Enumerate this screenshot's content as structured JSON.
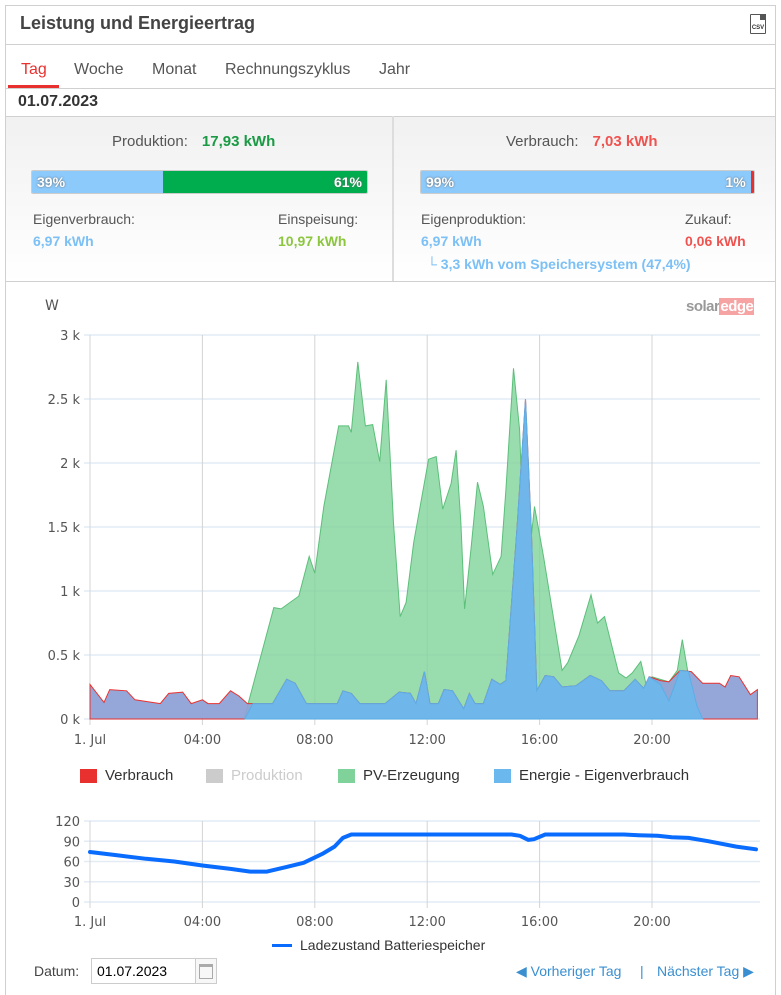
{
  "header": {
    "title": "Leistung und Energieertrag",
    "csv_label": "CSV"
  },
  "tabs": [
    {
      "label": "Tag",
      "active": true
    },
    {
      "label": "Woche"
    },
    {
      "label": "Monat"
    },
    {
      "label": "Rechnungszyklus"
    },
    {
      "label": "Jahr"
    }
  ],
  "date": "01.07.2023",
  "production": {
    "label": "Produktion:",
    "value": "17,93 kWh",
    "self_pct": "39%",
    "self_frac": 0.39,
    "feed_pct": "61%",
    "self_label": "Eigenverbrauch:",
    "self_value": "6,97 kWh",
    "feed_label": "Einspeisung:",
    "feed_value": "10,97 kWh"
  },
  "consumption": {
    "label": "Verbrauch:",
    "value": "7,03 kWh",
    "self_pct": "99%",
    "self_frac": 0.99,
    "buy_pct": "1%",
    "self_label": "Eigenproduktion:",
    "self_value": "6,97 kWh",
    "buy_label": "Zukauf:",
    "buy_value": "0,06 kWh",
    "storage_note": "└ 3,3 kWh vom Speichersystem (47,4%)"
  },
  "colors": {
    "green": "#00ad4e",
    "lightblue": "#8ccafc",
    "red": "#e8312f",
    "pv": "#7fd39a",
    "self": "#6ab8ee",
    "consumption": "#8fa2d6",
    "battery": "#0a6cff"
  },
  "logo": {
    "a": "solar",
    "b": "edge"
  },
  "chart_data": [
    {
      "type": "area",
      "ylabel": "W",
      "ylim": [
        0,
        3000
      ],
      "xlim_hours": [
        0,
        24
      ],
      "yticks": [
        "0 k",
        "0.5 k",
        "1 k",
        "1.5 k",
        "2 k",
        "2.5 k",
        "3 k"
      ],
      "xticks": [
        "1. Jul",
        "04:00",
        "08:00",
        "12:00",
        "16:00",
        "20:00"
      ],
      "legend": [
        {
          "name": "Verbrauch",
          "color": "#e8312f",
          "hidden": false
        },
        {
          "name": "Produktion",
          "color": "#cccccc",
          "hidden": true
        },
        {
          "name": "PV-Erzeugung",
          "color": "#7fd39a",
          "hidden": false
        },
        {
          "name": "Energie - Eigenverbrauch",
          "color": "#6ab8ee",
          "hidden": false
        }
      ],
      "series": {
        "verbrauch": [
          [
            0,
            270
          ],
          [
            0.5,
            130
          ],
          [
            0.7,
            230
          ],
          [
            1.3,
            220
          ],
          [
            1.6,
            150
          ],
          [
            2.5,
            120
          ],
          [
            2.8,
            200
          ],
          [
            3.3,
            210
          ],
          [
            3.6,
            120
          ],
          [
            4,
            150
          ],
          [
            4.2,
            120
          ],
          [
            4.6,
            120
          ],
          [
            5,
            220
          ],
          [
            5.3,
            180
          ],
          [
            5.6,
            120
          ],
          [
            6.5,
            120
          ],
          [
            7,
            310
          ],
          [
            7.3,
            280
          ],
          [
            7.7,
            120
          ],
          [
            8.8,
            120
          ],
          [
            9,
            220
          ],
          [
            9.3,
            200
          ],
          [
            9.6,
            120
          ],
          [
            10.5,
            120
          ],
          [
            11,
            210
          ],
          [
            11.4,
            200
          ],
          [
            11.6,
            120
          ],
          [
            11.9,
            370
          ],
          [
            12.1,
            120
          ],
          [
            12.4,
            120
          ],
          [
            12.6,
            230
          ],
          [
            12.9,
            220
          ],
          [
            13.3,
            80
          ],
          [
            13.5,
            200
          ],
          [
            13.7,
            120
          ],
          [
            14,
            120
          ],
          [
            14.3,
            310
          ],
          [
            14.6,
            270
          ],
          [
            14.8,
            300
          ],
          [
            15.2,
            1500
          ],
          [
            15.5,
            2500
          ],
          [
            15.7,
            1500
          ],
          [
            15.9,
            220
          ],
          [
            16.2,
            340
          ],
          [
            16.5,
            330
          ],
          [
            16.8,
            250
          ],
          [
            17.3,
            260
          ],
          [
            17.8,
            340
          ],
          [
            18.2,
            300
          ],
          [
            18.5,
            220
          ],
          [
            19,
            220
          ],
          [
            19.4,
            310
          ],
          [
            19.7,
            240
          ],
          [
            19.9,
            330
          ],
          [
            20.3,
            300
          ],
          [
            20.6,
            290
          ],
          [
            21,
            380
          ],
          [
            21.4,
            370
          ],
          [
            21.8,
            280
          ],
          [
            22.4,
            280
          ],
          [
            22.6,
            250
          ],
          [
            22.8,
            340
          ],
          [
            23.1,
            330
          ],
          [
            23.5,
            190
          ],
          [
            23.75,
            230
          ]
        ],
        "pv": [
          [
            5.48,
            0
          ],
          [
            6.54,
            870
          ],
          [
            6.8,
            860
          ],
          [
            7.43,
            960
          ],
          [
            7.8,
            1270
          ],
          [
            8,
            1140
          ],
          [
            8.32,
            1660
          ],
          [
            8.85,
            2290
          ],
          [
            9.2,
            2290
          ],
          [
            9.3,
            2240
          ],
          [
            9.53,
            2790
          ],
          [
            9.8,
            2290
          ],
          [
            10.06,
            2300
          ],
          [
            10.31,
            2010
          ],
          [
            10.54,
            2650
          ],
          [
            10.8,
            1530
          ],
          [
            11.04,
            800
          ],
          [
            11.25,
            910
          ],
          [
            11.52,
            1380
          ],
          [
            12.05,
            2030
          ],
          [
            12.32,
            2050
          ],
          [
            12.55,
            1640
          ],
          [
            12.85,
            1840
          ],
          [
            13.03,
            2100
          ],
          [
            13.2,
            1530
          ],
          [
            13.33,
            860
          ],
          [
            13.56,
            1330
          ],
          [
            13.79,
            1850
          ],
          [
            14,
            1660
          ],
          [
            14.33,
            1130
          ],
          [
            14.63,
            1270
          ],
          [
            14.8,
            1790
          ],
          [
            15.07,
            2740
          ],
          [
            15.29,
            2260
          ],
          [
            15.5,
            1000
          ],
          [
            15.82,
            1660
          ],
          [
            16.14,
            1270
          ],
          [
            16.5,
            780
          ],
          [
            16.8,
            380
          ],
          [
            17,
            440
          ],
          [
            17.4,
            650
          ],
          [
            17.83,
            970
          ],
          [
            18.06,
            750
          ],
          [
            18.31,
            800
          ],
          [
            18.81,
            360
          ],
          [
            19.08,
            320
          ],
          [
            19.3,
            360
          ],
          [
            19.6,
            450
          ],
          [
            19.8,
            260
          ],
          [
            20,
            330
          ],
          [
            20.6,
            290
          ],
          [
            20.9,
            380
          ],
          [
            21.08,
            620
          ],
          [
            21.26,
            390
          ],
          [
            21.56,
            0
          ]
        ],
        "eigenverbrauch": [
          [
            5.5,
            0
          ],
          [
            5.8,
            120
          ],
          [
            6.5,
            120
          ],
          [
            7,
            310
          ],
          [
            7.3,
            280
          ],
          [
            7.7,
            120
          ],
          [
            8.8,
            120
          ],
          [
            9,
            220
          ],
          [
            9.3,
            200
          ],
          [
            9.6,
            120
          ],
          [
            10.5,
            120
          ],
          [
            11,
            210
          ],
          [
            11.4,
            200
          ],
          [
            11.6,
            120
          ],
          [
            11.9,
            370
          ],
          [
            12.1,
            120
          ],
          [
            12.4,
            120
          ],
          [
            12.6,
            230
          ],
          [
            12.9,
            220
          ],
          [
            13.3,
            80
          ],
          [
            13.5,
            200
          ],
          [
            13.7,
            120
          ],
          [
            14,
            120
          ],
          [
            14.3,
            310
          ],
          [
            14.6,
            270
          ],
          [
            14.8,
            300
          ],
          [
            15.2,
            1500
          ],
          [
            15.5,
            2500
          ],
          [
            15.7,
            1500
          ],
          [
            15.9,
            220
          ],
          [
            16.2,
            340
          ],
          [
            16.5,
            330
          ],
          [
            16.8,
            250
          ],
          [
            17.3,
            260
          ],
          [
            17.8,
            340
          ],
          [
            18.2,
            300
          ],
          [
            18.5,
            220
          ],
          [
            19,
            220
          ],
          [
            19.4,
            310
          ],
          [
            19.7,
            240
          ],
          [
            19.9,
            330
          ],
          [
            20.3,
            270
          ],
          [
            20.6,
            140
          ],
          [
            21,
            380
          ],
          [
            21.3,
            370
          ],
          [
            21.6,
            100
          ],
          [
            21.8,
            0
          ]
        ]
      }
    },
    {
      "type": "line",
      "ylim": [
        0,
        120
      ],
      "yticks": [
        "0",
        "30",
        "60",
        "90",
        "120"
      ],
      "xticks": [
        "1. Jul",
        "04:00",
        "08:00",
        "12:00",
        "16:00",
        "20:00"
      ],
      "legend": [
        {
          "name": "Ladezustand Batteriespeicher",
          "color": "#0a6cff"
        }
      ],
      "series": [
        {
          "name": "Ladezustand Batteriespeicher",
          "values": [
            [
              0,
              74
            ],
            [
              1,
              69
            ],
            [
              2,
              64
            ],
            [
              3,
              60
            ],
            [
              4,
              54
            ],
            [
              5,
              49
            ],
            [
              5.7,
              45
            ],
            [
              6.3,
              45
            ],
            [
              7,
              52
            ],
            [
              7.6,
              58
            ],
            [
              8.3,
              72
            ],
            [
              8.7,
              82
            ],
            [
              9,
              95
            ],
            [
              9.3,
              100
            ],
            [
              12,
              100
            ],
            [
              15,
              100
            ],
            [
              15.3,
              98
            ],
            [
              15.6,
              92
            ],
            [
              15.8,
              93
            ],
            [
              16.2,
              100
            ],
            [
              19,
              100
            ],
            [
              19.5,
              99
            ],
            [
              20.2,
              98
            ],
            [
              20.7,
              96
            ],
            [
              21.3,
              95
            ],
            [
              22,
              90
            ],
            [
              23,
              82
            ],
            [
              23.7,
              78
            ]
          ]
        }
      ]
    }
  ],
  "footer": {
    "datum_label": "Datum:",
    "datum_value": "01.07.2023",
    "prev": "Vorheriger Tag",
    "sep": "|",
    "next": "Nächster Tag"
  }
}
